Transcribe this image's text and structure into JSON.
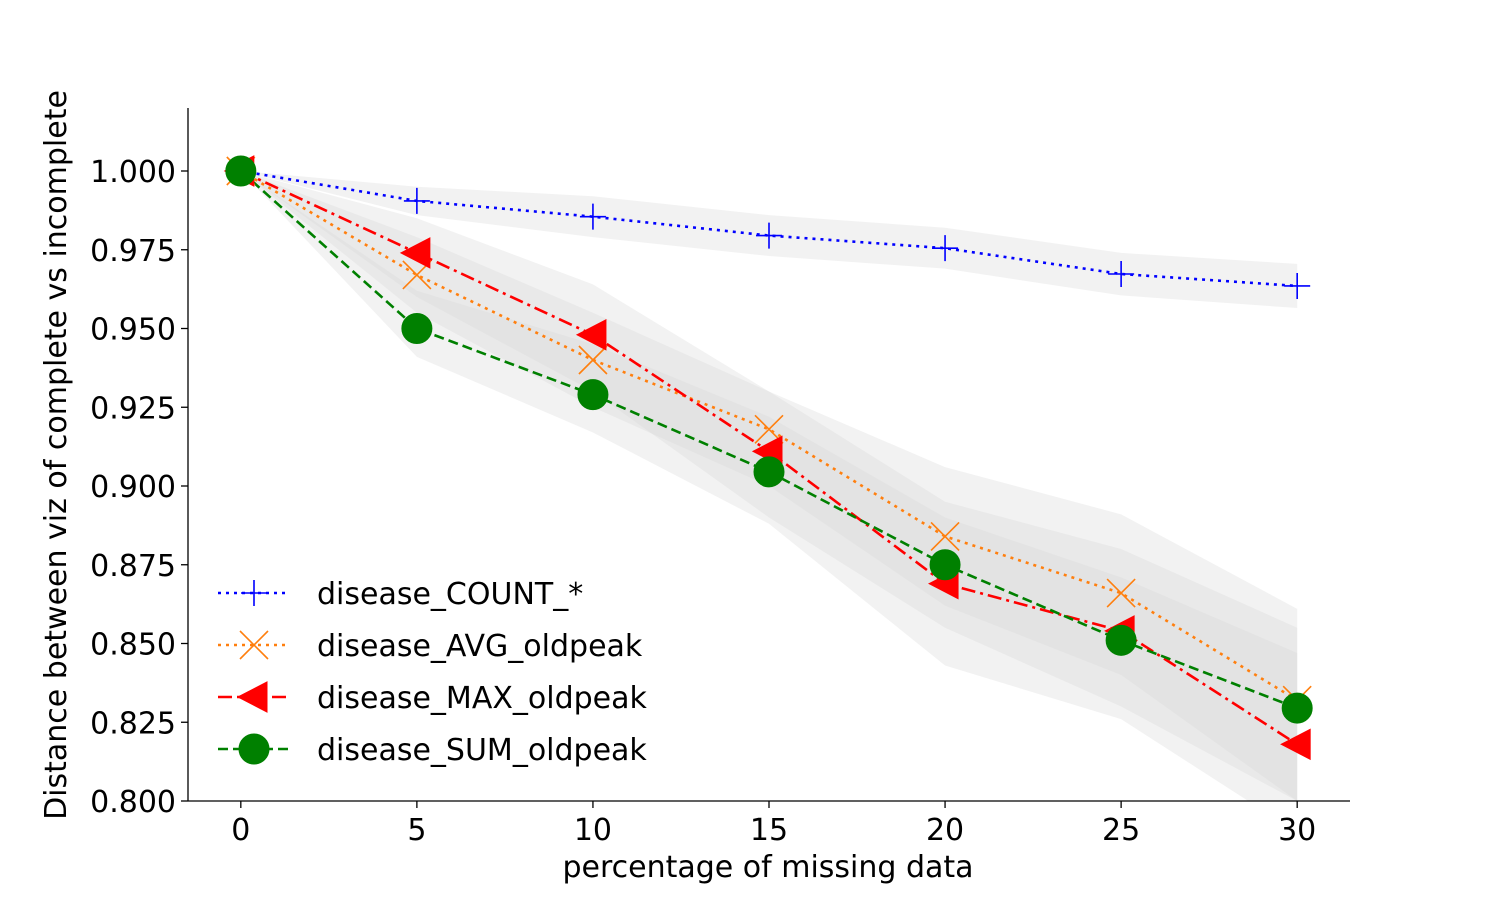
{
  "chart_data": {
    "type": "line",
    "xlabel": "percentage of missing data",
    "ylabel": "Distance between viz of complete vs incomplete",
    "xlim": [
      -1.5,
      31.5
    ],
    "ylim": [
      0.8,
      1.02
    ],
    "xticks": [
      0,
      5,
      10,
      15,
      20,
      25,
      30
    ],
    "yticks": [
      0.8,
      0.825,
      0.85,
      0.875,
      0.9,
      0.925,
      0.95,
      0.975,
      1.0
    ],
    "ytick_labels": [
      "0.800",
      "0.825",
      "0.850",
      "0.875",
      "0.900",
      "0.925",
      "0.950",
      "0.975",
      "1.000"
    ],
    "grid": false,
    "legend_position": "lower-left",
    "x": [
      0,
      5,
      10,
      15,
      20,
      25,
      30
    ],
    "series": [
      {
        "name": "disease_COUNT_*",
        "color": "#0000ff",
        "line_style": "dotted",
        "marker": "plus",
        "values": [
          1.0,
          0.9905,
          0.9855,
          0.9795,
          0.9755,
          0.9673,
          0.9635
        ],
        "band_low": [
          1.0,
          0.986,
          0.979,
          0.973,
          0.969,
          0.9605,
          0.9565
        ],
        "band_high": [
          1.0,
          0.995,
          0.992,
          0.986,
          0.982,
          0.974,
          0.9705
        ]
      },
      {
        "name": "disease_AVG_oldpeak",
        "color": "#ff7f0e",
        "line_style": "dotted",
        "marker": "x",
        "values": [
          1.0,
          0.967,
          0.94,
          0.918,
          0.884,
          0.866,
          0.832
        ],
        "band_low": [
          1.0,
          0.955,
          0.925,
          0.9,
          0.862,
          0.84,
          0.8
        ],
        "band_high": [
          1.0,
          0.979,
          0.955,
          0.93,
          0.906,
          0.891,
          0.861
        ]
      },
      {
        "name": "disease_MAX_oldpeak",
        "color": "#ff0000",
        "line_style": "dashdot",
        "marker": "triangle-left",
        "values": [
          1.0,
          0.974,
          0.948,
          0.911,
          0.869,
          0.854,
          0.818
        ],
        "band_low": [
          1.0,
          0.96,
          0.93,
          0.89,
          0.855,
          0.83,
          0.8
        ],
        "band_high": [
          1.0,
          0.985,
          0.964,
          0.93,
          0.895,
          0.88,
          0.855
        ]
      },
      {
        "name": "disease_SUM_oldpeak",
        "color": "#008000",
        "line_style": "dashed",
        "marker": "circle",
        "values": [
          1.0,
          0.95,
          0.929,
          0.9045,
          0.875,
          0.851,
          0.8295
        ],
        "band_low": [
          1.0,
          0.941,
          0.917,
          0.888,
          0.843,
          0.826,
          0.79
        ],
        "band_high": [
          1.0,
          0.962,
          0.945,
          0.922,
          0.89,
          0.871,
          0.847
        ]
      }
    ],
    "band_color": "#d9d9d9"
  }
}
